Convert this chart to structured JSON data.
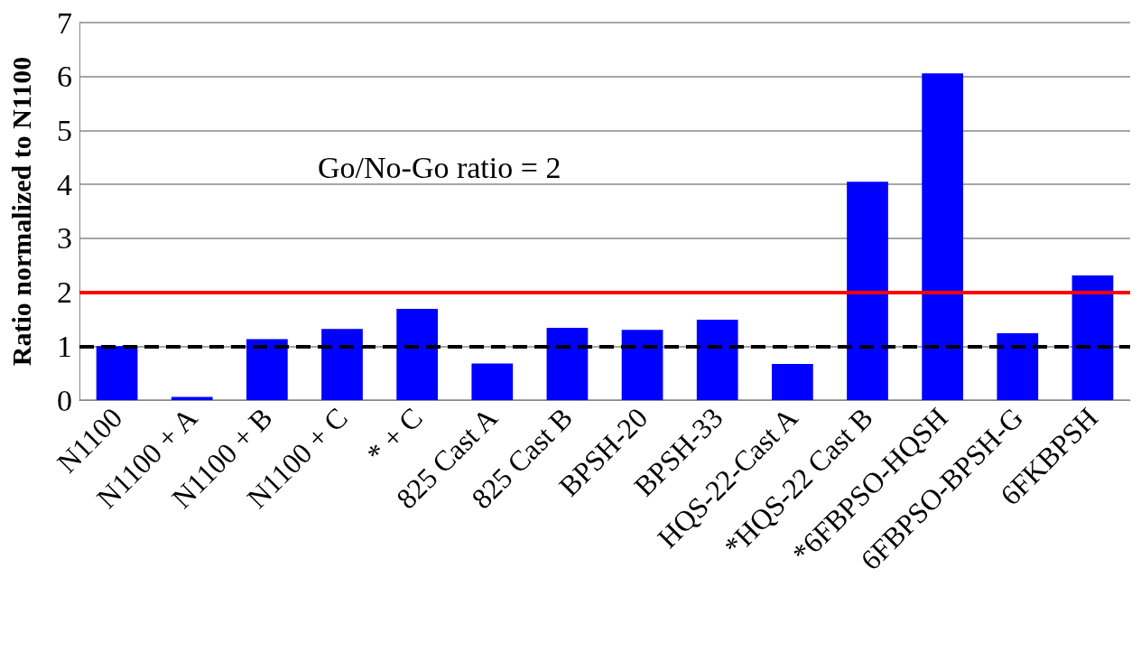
{
  "chart_data": {
    "type": "bar",
    "ylabel": "Ratio normalized to N1100",
    "categories": [
      "N1100",
      "N1100 + A",
      "N1100 + B",
      "N1100 + C",
      "* + C",
      "825 Cast A",
      "825 Cast B",
      "BPSH-20",
      "BPSH-33",
      "HQS-22-Cast A",
      "*HQS-22 Cast B",
      "*6FBPSO-HQSH",
      "6FBPSO-BPSH-G",
      "6FKBPSH"
    ],
    "values": [
      1.0,
      0.06,
      1.13,
      1.32,
      1.69,
      0.68,
      1.34,
      1.3,
      1.49,
      0.67,
      4.05,
      6.06,
      1.24,
      2.31
    ],
    "color": "#0000ff",
    "ylim": [
      0,
      7
    ],
    "yticks": [
      0,
      1,
      2,
      3,
      4,
      5,
      6,
      7
    ],
    "grid": "y",
    "annotations": [
      "Go/No-Go ratio = 2"
    ],
    "ref_lines": [
      {
        "axis": "y",
        "value": 1,
        "color": "#000000",
        "line_style": "dashed"
      },
      {
        "axis": "y",
        "value": 2,
        "color": "#ff0000",
        "line_style": "solid"
      }
    ]
  }
}
